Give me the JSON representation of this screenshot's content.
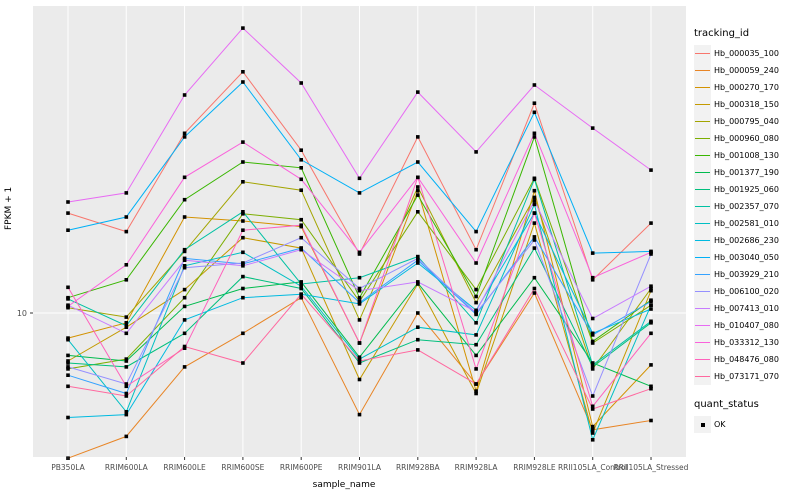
{
  "chart_data": {
    "type": "line",
    "title": "",
    "xlabel": "sample_name",
    "ylabel": "FPKM + 1",
    "y_scale": "log10",
    "y_tick_labels": [
      "10"
    ],
    "ylim_log": [
      0.52,
      2.0
    ],
    "grid": "major-vertical-per-category, horizontal-at-10, white on grey panel",
    "panel_bg": "#EBEBEB",
    "grid_color": "#FFFFFF",
    "point_marker": "black-square",
    "categories": [
      "PB350LA",
      "RRIM600LA",
      "RRIM600LE",
      "RRIM600SE",
      "RRIM600PE",
      "RRIM901LA",
      "RRIM928BA",
      "RRIM928LA",
      "RRIM928LE",
      "RRII105LA_Control",
      "RRII105LA_Stressed"
    ],
    "series": [
      {
        "name": "Hb_000035_100",
        "color": "#F8766D",
        "values": [
          21.0,
          18.3,
          38.0,
          60.0,
          33.5,
          15.5,
          37.0,
          16.0,
          47.5,
          12.8,
          19.5
        ]
      },
      {
        "name": "Hb_000059_240",
        "color": "#E88526",
        "values": [
          3.4,
          4.0,
          6.7,
          8.6,
          11.2,
          4.7,
          10.0,
          5.9,
          11.6,
          4.2,
          4.5
        ]
      },
      {
        "name": "Hb_000270_170",
        "color": "#D39200",
        "values": [
          8.3,
          9.3,
          20.4,
          19.8,
          19.0,
          8.0,
          24.8,
          5.6,
          24.8,
          4.3,
          6.8
        ]
      },
      {
        "name": "Hb_000318_150",
        "color": "#C49A00",
        "values": [
          7.0,
          9.0,
          11.9,
          17.5,
          16.2,
          6.1,
          12.4,
          5.5,
          19.5,
          4.1,
          11.8
        ]
      },
      {
        "name": "Hb_000795_040",
        "color": "#A3A500",
        "values": [
          10.4,
          9.7,
          15.8,
          26.5,
          24.9,
          9.5,
          25.5,
          10.8,
          23.6,
          6.6,
          12.0
        ]
      },
      {
        "name": "Hb_000960_080",
        "color": "#7CAE00",
        "values": [
          6.6,
          7.1,
          11.2,
          20.9,
          20.0,
          10.9,
          21.2,
          11.9,
          27.2,
          8.0,
          10.6
        ]
      },
      {
        "name": "Hb_001008_130",
        "color": "#39B600",
        "values": [
          11.2,
          12.8,
          23.2,
          30.7,
          29.4,
          11.2,
          24.0,
          11.3,
          37.0,
          8.1,
          11.0
        ]
      },
      {
        "name": "Hb_001377_190",
        "color": "#00BB4E",
        "values": [
          7.3,
          7.0,
          10.5,
          12.0,
          12.6,
          7.2,
          12.5,
          7.3,
          13.0,
          6.9,
          5.8
        ]
      },
      {
        "name": "Hb_001925_060",
        "color": "#00BF7D",
        "values": [
          6.9,
          6.7,
          8.6,
          13.1,
          12.0,
          6.9,
          8.2,
          7.9,
          16.2,
          6.7,
          9.3
        ]
      },
      {
        "name": "Hb_002357_070",
        "color": "#00C1A3",
        "values": [
          11.1,
          9.1,
          16.0,
          21.2,
          12.4,
          13.0,
          15.2,
          9.3,
          27.0,
          6.8,
          9.4
        ]
      },
      {
        "name": "Hb_002581_010",
        "color": "#00BFC4",
        "values": [
          8.2,
          4.8,
          14.2,
          15.7,
          12.2,
          7.1,
          9.0,
          8.5,
          22.4,
          3.9,
          10.6
        ]
      },
      {
        "name": "Hb_002686_230",
        "color": "#00BAE0",
        "values": [
          4.6,
          4.7,
          9.5,
          11.2,
          11.5,
          10.7,
          14.5,
          10.2,
          21.0,
          8.6,
          10.3
        ]
      },
      {
        "name": "Hb_003040_050",
        "color": "#00B0F6",
        "values": [
          18.5,
          20.4,
          37.0,
          55.6,
          31.2,
          24.4,
          30.7,
          18.3,
          44.4,
          15.6,
          15.8
        ]
      },
      {
        "name": "Hb_003929_210",
        "color": "#35A2FF",
        "values": [
          6.3,
          5.5,
          15.0,
          14.4,
          16.2,
          10.8,
          14.8,
          9.9,
          17.6,
          8.5,
          10.9
        ]
      },
      {
        "name": "Hb_006100_020",
        "color": "#9590FF",
        "values": [
          6.7,
          5.9,
          14.0,
          14.5,
          17.5,
          12.0,
          15.0,
          10.0,
          17.2,
          5.4,
          15.5
        ]
      },
      {
        "name": "Hb_007413_010",
        "color": "#C77CFF",
        "values": [
          10.6,
          8.6,
          14.8,
          14.2,
          16.0,
          11.8,
          12.6,
          10.1,
          23.0,
          9.6,
          12.2
        ]
      },
      {
        "name": "Hb_010407_080",
        "color": "#E76BF3",
        "values": [
          22.8,
          24.4,
          50.5,
          83.0,
          55.2,
          27.2,
          51.6,
          33.1,
          54.4,
          39.5,
          28.9
        ]
      },
      {
        "name": "Hb_033312_130",
        "color": "#FA62DB",
        "values": [
          10.5,
          14.3,
          27.4,
          35.6,
          27.0,
          15.7,
          27.4,
          14.5,
          38.0,
          13.0,
          15.7
        ]
      },
      {
        "name": "Hb_048476_080",
        "color": "#FF62BC",
        "values": [
          12.1,
          5.8,
          7.7,
          18.5,
          19.2,
          8.0,
          27.4,
          6.6,
          21.0,
          5.0,
          8.6
        ]
      },
      {
        "name": "Hb_073171_070",
        "color": "#FF689F",
        "values": [
          5.8,
          5.4,
          7.8,
          6.9,
          11.5,
          7.0,
          7.6,
          5.9,
          12.0,
          4.9,
          5.7
        ]
      }
    ],
    "legend": {
      "position": "right",
      "color_legend_title": "tracking_id",
      "shape_legend_title": "quant_status",
      "shape_legend_items": [
        "OK"
      ]
    }
  }
}
